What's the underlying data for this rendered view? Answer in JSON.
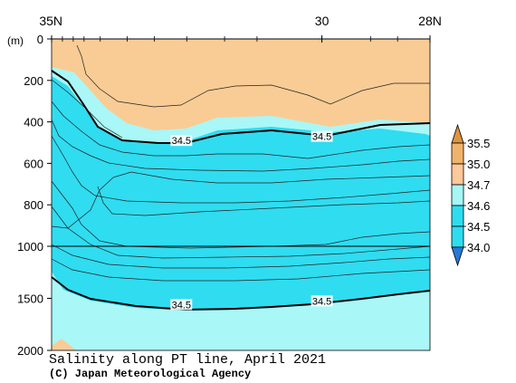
{
  "chart_data": {
    "type": "heatmap",
    "title": "Salinity along PT line, April 2021",
    "credit": "(C) Japan Meteorological Agency",
    "y_unit_label": "(m)",
    "x_ticks": [
      {
        "lat": 35,
        "label": "35N"
      },
      {
        "lat": 30,
        "label": "30"
      },
      {
        "lat": 28,
        "label": "28N"
      }
    ],
    "x_range_lat": [
      35,
      28
    ],
    "y_ticks": [
      0,
      200,
      400,
      600,
      800,
      1000,
      1500,
      2000
    ],
    "y_range_m": [
      0,
      2000
    ],
    "y_axis_break_m": 1000,
    "contour_labels": [
      {
        "lat": 32.6,
        "depth": 490,
        "text": "34.5"
      },
      {
        "lat": 30.0,
        "depth": 470,
        "text": "34.5"
      },
      {
        "lat": 32.6,
        "depth": 1560,
        "text": "34.5"
      },
      {
        "lat": 30.0,
        "depth": 1525,
        "text": "34.5"
      }
    ],
    "colorbar": {
      "levels": [
        "35.5",
        "35.0",
        "34.7",
        "34.6",
        "34.5",
        "34.0"
      ],
      "colors": [
        "#de9440",
        "#f0b36c",
        "#fbc99a",
        "#7af4f4",
        "#2fdcee",
        "#2878d8"
      ],
      "bands_top_to_bottom": [
        "#de9440",
        "#f0b36c",
        "#fbc99a",
        "#a6f6f6",
        "#2fdcee",
        "#2878d8"
      ]
    },
    "fill_colors": {
      "salty": "#f9cc95",
      "light": "#aaf7f7",
      "medium": "#30dcf0"
    }
  }
}
